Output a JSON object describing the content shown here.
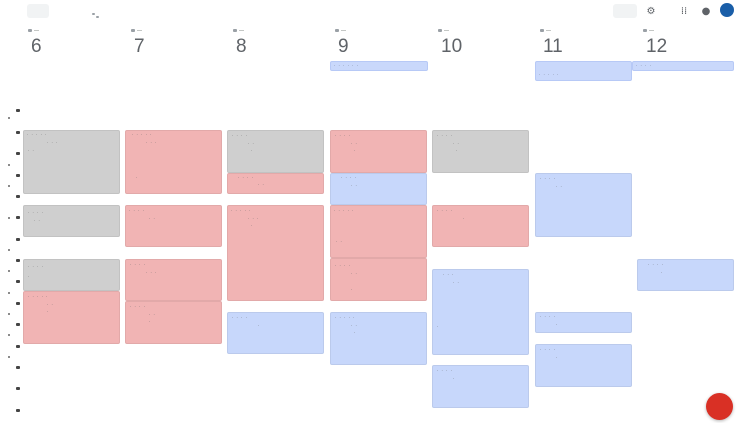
{
  "colors": {
    "gray_event": "#cfcfcf",
    "red_event": "#f1b4b4",
    "blue_event": "#c7d7fb",
    "fab": "#d93025",
    "avatar": "#1a5ea8"
  },
  "toolbar": {
    "settings_icon": "gear-icon",
    "apps_icon": "apps-grid-icon",
    "account_icon": "account-circle-icon"
  },
  "days": [
    {
      "num": "6"
    },
    {
      "num": "7"
    },
    {
      "num": "8"
    },
    {
      "num": "9"
    },
    {
      "num": "10"
    },
    {
      "num": "11"
    },
    {
      "num": "12"
    }
  ],
  "allday_events": [
    {
      "label": "· · · · · ·"
    },
    {
      "label": "· · · · ·"
    },
    {
      "label": "· · · ·"
    }
  ],
  "events": [
    {
      "color": "gray",
      "lines": [
        "· · · · ·",
        "· · ·",
        "· ·"
      ]
    },
    {
      "color": "gray",
      "lines": [
        "· · · ·",
        "· ·"
      ]
    },
    {
      "color": "gray",
      "lines": [
        "· · · ·",
        "·"
      ]
    },
    {
      "color": "red",
      "lines": [
        "· · · · ·",
        "· ·",
        "·"
      ]
    },
    {
      "color": "red",
      "lines": [
        "· · · · ·",
        "· · ·",
        "·"
      ]
    },
    {
      "color": "red",
      "lines": [
        "· · · ·",
        "· ·"
      ]
    },
    {
      "color": "red",
      "lines": [
        "· · · ·",
        "· · ·"
      ]
    },
    {
      "color": "red",
      "lines": [
        "· · · ·",
        "· ·",
        "·"
      ]
    },
    {
      "color": "gray",
      "lines": [
        "· · · ·",
        "· ·",
        "·"
      ]
    },
    {
      "color": "red",
      "lines": [
        "· · · ·",
        "· ·"
      ]
    },
    {
      "color": "red",
      "lines": [
        "· · · · ·",
        "· · ·",
        "·"
      ]
    },
    {
      "color": "blue",
      "lines": [
        "· · · ·",
        "·"
      ]
    },
    {
      "color": "red",
      "lines": [
        "· · · ·",
        "· ·",
        "·"
      ]
    },
    {
      "color": "blue",
      "lines": [
        "· · · ·",
        "· ·"
      ]
    },
    {
      "color": "red",
      "lines": [
        "· · · · ·",
        "· ·"
      ]
    },
    {
      "color": "red",
      "lines": [
        "· · · ·",
        "· ·",
        "·"
      ]
    },
    {
      "color": "blue",
      "lines": [
        "· · · · ·",
        "· ·",
        "·"
      ]
    },
    {
      "color": "gray",
      "lines": [
        "· · · ·",
        "· ·",
        "·"
      ]
    },
    {
      "color": "red",
      "lines": [
        "· · · ·",
        "·"
      ]
    },
    {
      "color": "blue",
      "lines": [
        "· · ·",
        "· ·",
        "·"
      ]
    },
    {
      "color": "blue",
      "lines": [
        "· · · ·",
        "·"
      ]
    },
    {
      "color": "blue",
      "lines": [
        "· · · ·",
        "· ·"
      ]
    },
    {
      "color": "blue",
      "lines": [
        "· · · ·",
        "·"
      ]
    },
    {
      "color": "blue",
      "lines": [
        "· · · ·",
        "·"
      ]
    },
    {
      "color": "blue",
      "lines": [
        "· · · ·",
        "·"
      ]
    }
  ]
}
